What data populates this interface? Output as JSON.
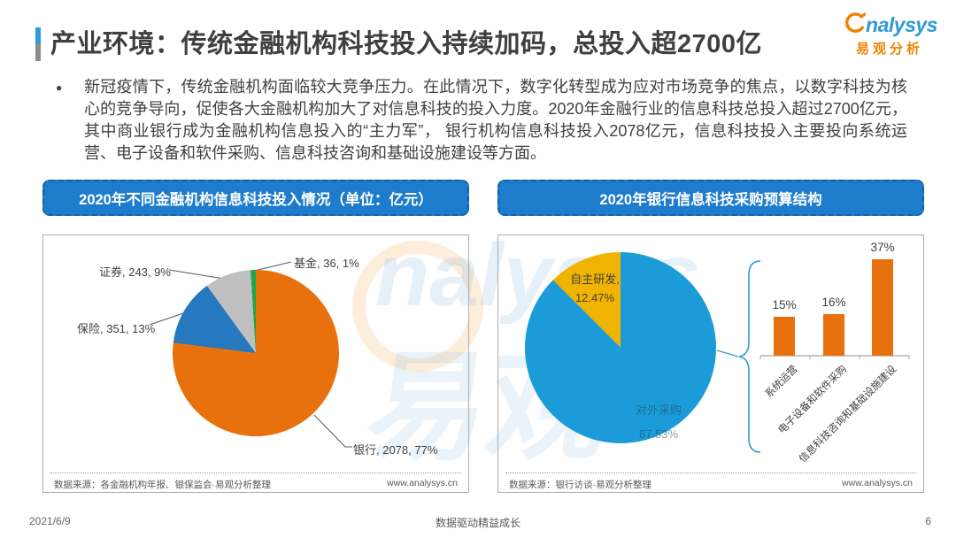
{
  "page": {
    "title": "产业环境：传统金融机构科技投入持续加码，总投入超2700亿",
    "logo": {
      "brand": "nalysys",
      "brand_cn": "易观分析"
    },
    "bullet": "●",
    "paragraph": "新冠疫情下，传统金融机构面临较大竞争压力。在此情况下，数字化转型成为应对市场竞争的焦点，以数字科技为核心的竞争导向，促使各大金融机构加大了对信息科技的投入力度。2020年金融行业的信息科技总投入超过2700亿元，其中商业银行成为金融机构信息投入的“主力军”， 银行机构信息科技投入2078亿元，信息科技投入主要投向系统运营、电子设备和软件采购、信息科技咨询和基础设施建设等方面。",
    "watermark": {
      "latin": "nalysys",
      "cn": "易观"
    },
    "footer": {
      "date": "2021/6/9",
      "slogan": "数据驱动精益成长",
      "page_number": "6"
    }
  },
  "left_panel": {
    "header": "2020年不同金融机构信息科技投入情况（单位：亿元）",
    "source": "数据来源：各金融机构年报、银保监会·易观分析整理",
    "website": "www.analysys.cn"
  },
  "right_panel": {
    "header": "2020年银行信息科技采购预算结构",
    "source": "数据来源：银行访谈·易观分析整理",
    "website": "www.analysys.cn"
  },
  "chart_data": [
    {
      "type": "pie",
      "title": "2020年不同金融机构信息科技投入情况（单位：亿元）",
      "labels": [
        "银行",
        "保险",
        "证券",
        "基金"
      ],
      "values": [
        2078,
        351,
        243,
        36
      ],
      "percent_values": [
        77,
        13,
        9,
        1
      ],
      "unit": "亿元",
      "colors": [
        "#E8710D",
        "#2678BF",
        "#BFBFBF",
        "#1DA64A"
      ],
      "callouts": [
        "银行, 2078, 77%",
        "保险, 351, 13%",
        "证券, 243, 9%",
        "基金, 36, 1%"
      ]
    },
    {
      "type": "pie",
      "title": "2020年银行信息科技采购预算结构",
      "labels": [
        "对外采购",
        "自主研发"
      ],
      "values": [
        87.53,
        12.47
      ],
      "unit": "%",
      "colors": [
        "#1B9CD9",
        "#F0B400"
      ],
      "callouts": [
        [
          "对外采购",
          "87.53%"
        ],
        [
          "自主研发,",
          "12.47%"
        ]
      ]
    },
    {
      "type": "bar",
      "categories": [
        "系统运营",
        "电子设备和软件采购",
        "信息科技咨询和基础设施建设"
      ],
      "values": [
        15,
        16,
        37
      ],
      "value_labels": [
        "15%",
        "16%",
        "37%"
      ],
      "unit": "%",
      "color": "#E8710D",
      "ylim": [
        0,
        40
      ],
      "grid": false
    }
  ]
}
